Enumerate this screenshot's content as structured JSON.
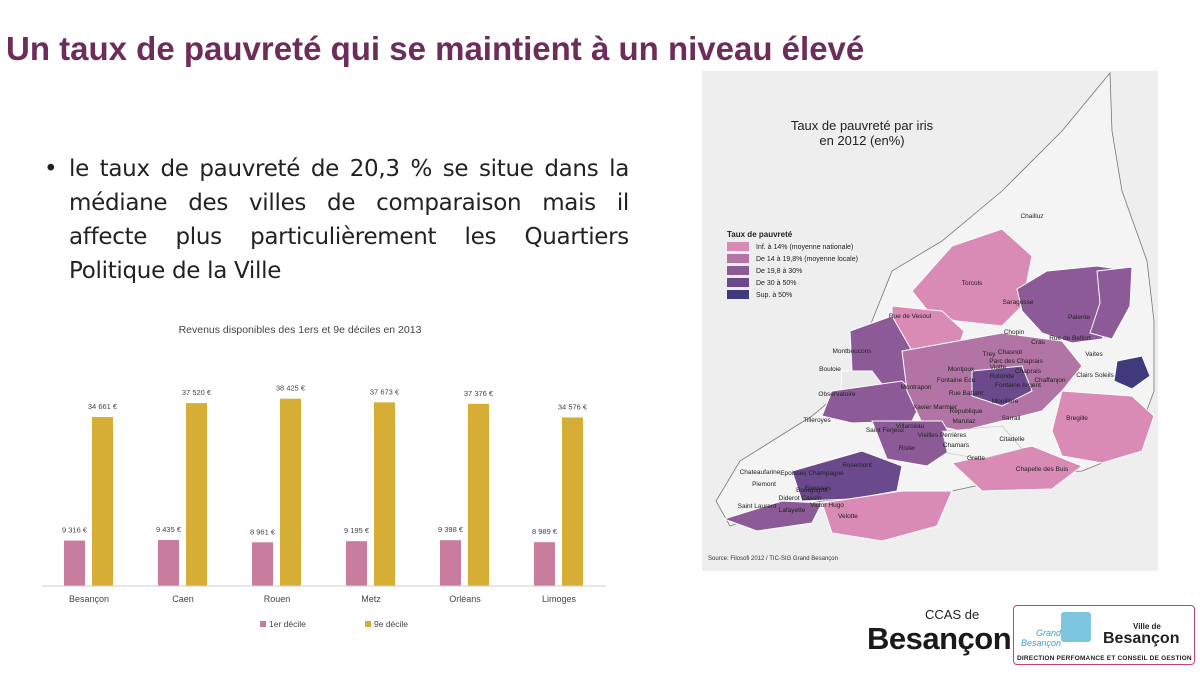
{
  "slide": {
    "title": "Un taux de pauvreté  qui se maintient à un niveau élevé",
    "bullet": "le taux de pauvreté de 20,3 % se situe dans la médiane des villes de comparaison mais il affecte plus particulièrement les Quartiers Politique de la Ville"
  },
  "chart_data": {
    "type": "bar",
    "title": "Revenus disponibles des 1ers et 9e déciles en 2013",
    "categories": [
      "Besançon",
      "Caen",
      "Rouen",
      "Metz",
      "Orléans",
      "Limoges"
    ],
    "series": [
      {
        "name": "1er décile",
        "color": "#c87d9f",
        "values": [
          9316,
          9435,
          8961,
          9195,
          9398,
          8989
        ],
        "labels": [
          "9 316 €",
          "9 435 €",
          "8 961 €",
          "9 195 €",
          "9 398 €",
          "8 989 €"
        ]
      },
      {
        "name": "9e décile",
        "color": "#d6ad35",
        "values": [
          34661,
          37520,
          38425,
          37673,
          37376,
          34576
        ],
        "labels": [
          "34 661 €",
          "37 520 €",
          "38 425 €",
          "37 673 €",
          "37 376 €",
          "34 576 €"
        ]
      }
    ],
    "ylim": [
      0,
      40000
    ],
    "grid": false,
    "legend": "bottom"
  },
  "map": {
    "title_line1": "Taux de pauvreté par iris",
    "title_line2": "en 2012 (en%)",
    "legend_title": "Taux de pauvreté",
    "legend": [
      {
        "label": "Inf. à 14% (moyenne nationale)",
        "color": "#d98bb5"
      },
      {
        "label": "De 14 à 19,8% (moyenne locale)",
        "color": "#b274a4"
      },
      {
        "label": "De 19,8 à 30%",
        "color": "#8d5a98"
      },
      {
        "label": "De 30 à 50%",
        "color": "#6a4a8c"
      },
      {
        "label": "Sup. à 50%",
        "color": "#3f3a7c"
      }
    ],
    "source": "Source: Filosofi 2012 / TIC-SIG Grand Besançon",
    "places": [
      "Chailluz",
      "Torcols",
      "Saragosse",
      "Palente",
      "Rue de Vesoul",
      "Chopin",
      "Cras",
      "Rue de Belfort",
      "Vaites",
      "Montboucons",
      "Trey",
      "Chasnot",
      "Parc des Chaprais",
      "Viotte",
      "Chaprais",
      "Bouloie",
      "Montjoux",
      "Fontaine Ecu",
      "Rotonde",
      "Chaffanjon",
      "Clairs Soleils",
      "Montrapon",
      "Fontaine Argent",
      "Observatoire",
      "Xavier Marmier",
      "Rue Battant",
      "Mouillère",
      "Tilleroyes",
      "Villarceau",
      "République",
      "Marulaz",
      "Sarrail",
      "Bregille",
      "Saint Ferjeux",
      "Vieilles Perrières",
      "Chamars",
      "Citadelle",
      "Risler",
      "Grette",
      "Rosemont",
      "Chateaufarine",
      "Epoisses Champagne",
      "Epoisses",
      "Piemont",
      "Bourgogne",
      "Diderot Cassin",
      "Saint Laurent",
      "Lafayette",
      "Victor Hugo",
      "Velotte",
      "Chapelle des Buis"
    ]
  },
  "logos": {
    "ccas_top": "CCAS de",
    "ccas_city": "Besançon",
    "grand_besancon": "Grand Besançon",
    "ville_de": "Ville de",
    "ville_city": "Besançon",
    "direction": "DIRECTION PERFOMANCE ET CONSEIL DE GESTION"
  }
}
